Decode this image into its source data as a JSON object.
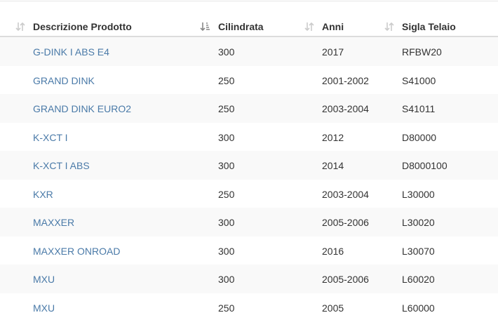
{
  "table": {
    "headers": [
      "Descrizione Prodotto",
      "Cilindrata",
      "Anni",
      "Sigla Telaio"
    ],
    "rows": [
      [
        "G-DINK I ABS E4",
        "300",
        "2017",
        "RFBW20"
      ],
      [
        "GRAND DINK",
        "250",
        "2001-2002",
        "S41000"
      ],
      [
        "GRAND DINK EURO2",
        "250",
        "2003-2004",
        "S41011"
      ],
      [
        "K-XCT I",
        "300",
        "2012",
        "D80000"
      ],
      [
        "K-XCT I ABS",
        "300",
        "2014",
        "D8000100"
      ],
      [
        "KXR",
        "250",
        "2003-2004",
        "L30000"
      ],
      [
        "MAXXER",
        "300",
        "2005-2006",
        "L30020"
      ],
      [
        "MAXXER ONROAD",
        "300",
        "2016",
        "L30070"
      ],
      [
        "MXU",
        "300",
        "2005-2006",
        "L60020"
      ],
      [
        "MXU",
        "250",
        "2005",
        "L60000"
      ]
    ]
  }
}
